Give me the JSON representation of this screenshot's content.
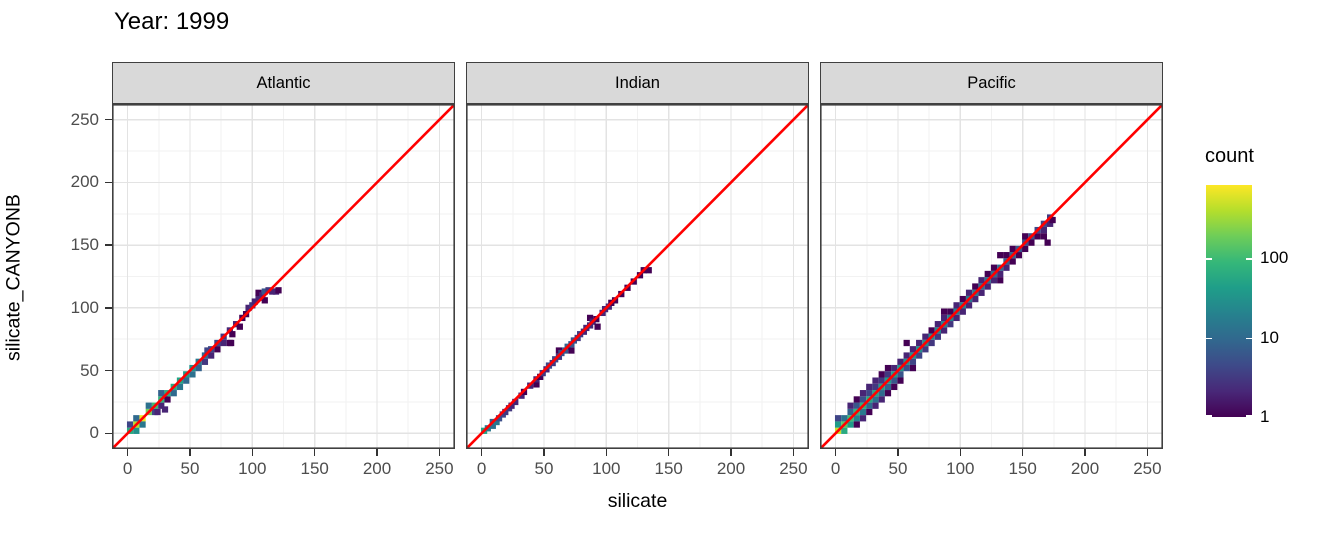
{
  "title": "Year: 1999",
  "chart_data": {
    "type": "bin2d",
    "title": "Year: 1999",
    "xlabel": "silicate",
    "ylabel": "silicate_CANYONB",
    "x_ticks": [
      0,
      50,
      100,
      150,
      200,
      250
    ],
    "y_ticks": [
      0,
      50,
      100,
      150,
      200,
      250
    ],
    "xlim": [
      -12.5,
      262.5
    ],
    "ylim": [
      -12.5,
      262.5
    ],
    "grid": {
      "major_every": 50,
      "minor_every": 25,
      "major_color": "#E3E3E3",
      "minor_color": "#F2F2F2"
    },
    "panel_border_color": "#404040",
    "strip_fill": "#D9D9D9",
    "axis_text_color": "#4D4D4D",
    "bin_width": 5,
    "reference_line": {
      "type": "abline",
      "intercept": 0,
      "slope": 1,
      "color": "#FF0000",
      "width": 2.6
    },
    "legend": {
      "title": "count",
      "scale": "log10",
      "tick_values": [
        100,
        10,
        1
      ],
      "tick_labels": [
        "100",
        "10",
        "1"
      ],
      "domain_min": 1,
      "domain_max": 830,
      "palette": "viridis",
      "viridis_stops": [
        "#440154",
        "#482878",
        "#3E4A89",
        "#31688E",
        "#26828E",
        "#1F9E89",
        "#35B779",
        "#6DCD59",
        "#B4DE2C",
        "#FDE725"
      ]
    },
    "facets": [
      {
        "label": "Atlantic",
        "bins": [
          [
            2,
            2,
            60
          ],
          [
            2,
            7,
            4
          ],
          [
            7,
            7,
            400
          ],
          [
            7,
            2,
            30
          ],
          [
            7,
            12,
            10
          ],
          [
            12,
            12,
            700
          ],
          [
            12,
            7,
            15
          ],
          [
            17,
            17,
            200
          ],
          [
            17,
            22,
            12
          ],
          [
            22,
            22,
            100
          ],
          [
            22,
            17,
            4
          ],
          [
            24,
            17,
            2
          ],
          [
            27,
            22,
            2
          ],
          [
            27,
            27,
            80
          ],
          [
            30,
            19,
            2
          ],
          [
            30,
            30,
            60
          ],
          [
            32,
            27,
            1
          ],
          [
            27,
            32,
            8
          ],
          [
            32,
            32,
            70
          ],
          [
            37,
            37,
            60
          ],
          [
            37,
            32,
            10
          ],
          [
            42,
            42,
            50
          ],
          [
            42,
            37,
            15
          ],
          [
            47,
            47,
            40
          ],
          [
            47,
            42,
            10
          ],
          [
            52,
            52,
            30
          ],
          [
            52,
            47,
            12
          ],
          [
            57,
            57,
            15
          ],
          [
            57,
            52,
            8
          ],
          [
            62,
            62,
            10
          ],
          [
            62,
            57,
            3
          ],
          [
            64,
            66,
            4
          ],
          [
            67,
            67,
            4
          ],
          [
            67,
            62,
            2
          ],
          [
            72,
            72,
            4
          ],
          [
            72,
            67,
            1
          ],
          [
            77,
            77,
            3
          ],
          [
            77,
            72,
            2
          ],
          [
            82,
            72,
            1
          ],
          [
            82,
            82,
            2
          ],
          [
            83,
            72,
            1
          ],
          [
            84,
            79,
            1
          ],
          [
            87,
            87,
            2
          ],
          [
            90,
            85,
            1
          ],
          [
            92,
            92,
            1
          ],
          [
            95,
            95,
            1
          ],
          [
            97,
            100,
            2
          ],
          [
            100,
            102,
            3
          ],
          [
            102,
            105,
            2
          ],
          [
            105,
            108,
            2
          ],
          [
            105,
            112,
            1
          ],
          [
            108,
            110,
            2
          ],
          [
            110,
            106,
            1
          ],
          [
            110,
            113,
            6
          ],
          [
            113,
            114,
            3
          ],
          [
            116,
            113,
            2
          ],
          [
            119,
            113,
            2
          ],
          [
            121,
            114,
            1
          ]
        ]
      },
      {
        "label": "Indian",
        "bins": [
          [
            2,
            2,
            50
          ],
          [
            5,
            4,
            15
          ],
          [
            9,
            6,
            12
          ],
          [
            9,
            9,
            8
          ],
          [
            12,
            9,
            15
          ],
          [
            14,
            12,
            5
          ],
          [
            17,
            15,
            4
          ],
          [
            19,
            17,
            3
          ],
          [
            22,
            20,
            3
          ],
          [
            24,
            22,
            2
          ],
          [
            27,
            25,
            2
          ],
          [
            32,
            30,
            2
          ],
          [
            34,
            33,
            1
          ],
          [
            39,
            38,
            2
          ],
          [
            44,
            39,
            1
          ],
          [
            44,
            43,
            2
          ],
          [
            47,
            45,
            1
          ],
          [
            49,
            48,
            3
          ],
          [
            52,
            51,
            2
          ],
          [
            54,
            54,
            4
          ],
          [
            57,
            56,
            3
          ],
          [
            59,
            59,
            4
          ],
          [
            62,
            61,
            3
          ],
          [
            62,
            66,
            1
          ],
          [
            64,
            64,
            5
          ],
          [
            67,
            66,
            6
          ],
          [
            69,
            69,
            8
          ],
          [
            72,
            66,
            1
          ],
          [
            72,
            71,
            6
          ],
          [
            74,
            74,
            5
          ],
          [
            77,
            76,
            3
          ],
          [
            79,
            79,
            3
          ],
          [
            82,
            81,
            2
          ],
          [
            84,
            84,
            2
          ],
          [
            87,
            86,
            2
          ],
          [
            87,
            92,
            1
          ],
          [
            89,
            89,
            2
          ],
          [
            92,
            91,
            1
          ],
          [
            93,
            85,
            1
          ],
          [
            97,
            96,
            2
          ],
          [
            99,
            99,
            2
          ],
          [
            102,
            101,
            2
          ],
          [
            104,
            104,
            1
          ],
          [
            107,
            106,
            1
          ],
          [
            112,
            111,
            1
          ],
          [
            117,
            116,
            1
          ],
          [
            122,
            121,
            1
          ],
          [
            127,
            126,
            1
          ],
          [
            130,
            130,
            1
          ],
          [
            134,
            130,
            1
          ]
        ]
      },
      {
        "label": "Pacific",
        "bins": [
          [
            2,
            2,
            500
          ],
          [
            2,
            7,
            40
          ],
          [
            2,
            12,
            4
          ],
          [
            7,
            7,
            150
          ],
          [
            7,
            2,
            60
          ],
          [
            7,
            12,
            12
          ],
          [
            12,
            12,
            100
          ],
          [
            12,
            7,
            40
          ],
          [
            12,
            17,
            8
          ],
          [
            12,
            22,
            2
          ],
          [
            17,
            17,
            80
          ],
          [
            17,
            12,
            20
          ],
          [
            17,
            22,
            6
          ],
          [
            17,
            27,
            1
          ],
          [
            17,
            7,
            1
          ],
          [
            22,
            22,
            70
          ],
          [
            22,
            17,
            15
          ],
          [
            22,
            27,
            5
          ],
          [
            22,
            32,
            2
          ],
          [
            22,
            12,
            2
          ],
          [
            27,
            27,
            60
          ],
          [
            27,
            22,
            10
          ],
          [
            27,
            32,
            4
          ],
          [
            27,
            17,
            1
          ],
          [
            27,
            37,
            2
          ],
          [
            32,
            32,
            50
          ],
          [
            32,
            27,
            12
          ],
          [
            32,
            37,
            3
          ],
          [
            32,
            22,
            2
          ],
          [
            32,
            42,
            2
          ],
          [
            37,
            37,
            45
          ],
          [
            37,
            32,
            10
          ],
          [
            37,
            42,
            3
          ],
          [
            37,
            47,
            1
          ],
          [
            37,
            27,
            2
          ],
          [
            42,
            42,
            40
          ],
          [
            42,
            37,
            8
          ],
          [
            42,
            47,
            3
          ],
          [
            42,
            32,
            1
          ],
          [
            42,
            52,
            1
          ],
          [
            47,
            47,
            40
          ],
          [
            47,
            42,
            6
          ],
          [
            47,
            52,
            2
          ],
          [
            47,
            37,
            1
          ],
          [
            52,
            52,
            35
          ],
          [
            52,
            47,
            6
          ],
          [
            52,
            57,
            2
          ],
          [
            52,
            42,
            1
          ],
          [
            57,
            57,
            30
          ],
          [
            57,
            52,
            5
          ],
          [
            57,
            62,
            2
          ],
          [
            57,
            72,
            1
          ],
          [
            62,
            62,
            30
          ],
          [
            62,
            57,
            4
          ],
          [
            62,
            67,
            2
          ],
          [
            62,
            52,
            1
          ],
          [
            67,
            67,
            28
          ],
          [
            67,
            62,
            4
          ],
          [
            67,
            72,
            2
          ],
          [
            72,
            72,
            25
          ],
          [
            72,
            67,
            3
          ],
          [
            72,
            77,
            2
          ],
          [
            77,
            77,
            25
          ],
          [
            77,
            72,
            3
          ],
          [
            77,
            82,
            1
          ],
          [
            82,
            82,
            22
          ],
          [
            82,
            77,
            3
          ],
          [
            82,
            87,
            2
          ],
          [
            87,
            87,
            20
          ],
          [
            87,
            82,
            2
          ],
          [
            87,
            92,
            2
          ],
          [
            87,
            97,
            1
          ],
          [
            92,
            92,
            20
          ],
          [
            92,
            87,
            3
          ],
          [
            92,
            97,
            1
          ],
          [
            97,
            97,
            18
          ],
          [
            97,
            92,
            2
          ],
          [
            97,
            102,
            2
          ],
          [
            102,
            102,
            18
          ],
          [
            102,
            97,
            2
          ],
          [
            102,
            107,
            1
          ],
          [
            107,
            107,
            15
          ],
          [
            107,
            102,
            2
          ],
          [
            107,
            112,
            2
          ],
          [
            112,
            112,
            15
          ],
          [
            112,
            107,
            2
          ],
          [
            112,
            117,
            1
          ],
          [
            117,
            117,
            12
          ],
          [
            117,
            112,
            2
          ],
          [
            117,
            122,
            2
          ],
          [
            122,
            122,
            12
          ],
          [
            122,
            117,
            2
          ],
          [
            122,
            127,
            1
          ],
          [
            127,
            127,
            10
          ],
          [
            127,
            122,
            2
          ],
          [
            127,
            132,
            1
          ],
          [
            132,
            132,
            10
          ],
          [
            132,
            127,
            2
          ],
          [
            132,
            122,
            1
          ],
          [
            132,
            142,
            1
          ],
          [
            137,
            137,
            8
          ],
          [
            137,
            132,
            2
          ],
          [
            137,
            142,
            1
          ],
          [
            142,
            142,
            8
          ],
          [
            142,
            137,
            1
          ],
          [
            142,
            147,
            1
          ],
          [
            147,
            147,
            6
          ],
          [
            147,
            142,
            1
          ],
          [
            152,
            152,
            5
          ],
          [
            152,
            147,
            1
          ],
          [
            152,
            157,
            1
          ],
          [
            157,
            157,
            5
          ],
          [
            157,
            152,
            1
          ],
          [
            162,
            162,
            4
          ],
          [
            162,
            157,
            1
          ],
          [
            167,
            167,
            4
          ],
          [
            167,
            162,
            2
          ],
          [
            167,
            157,
            1
          ],
          [
            170,
            152,
            1
          ],
          [
            172,
            172,
            3
          ],
          [
            172,
            167,
            2
          ],
          [
            174,
            170,
            1
          ]
        ]
      }
    ]
  }
}
